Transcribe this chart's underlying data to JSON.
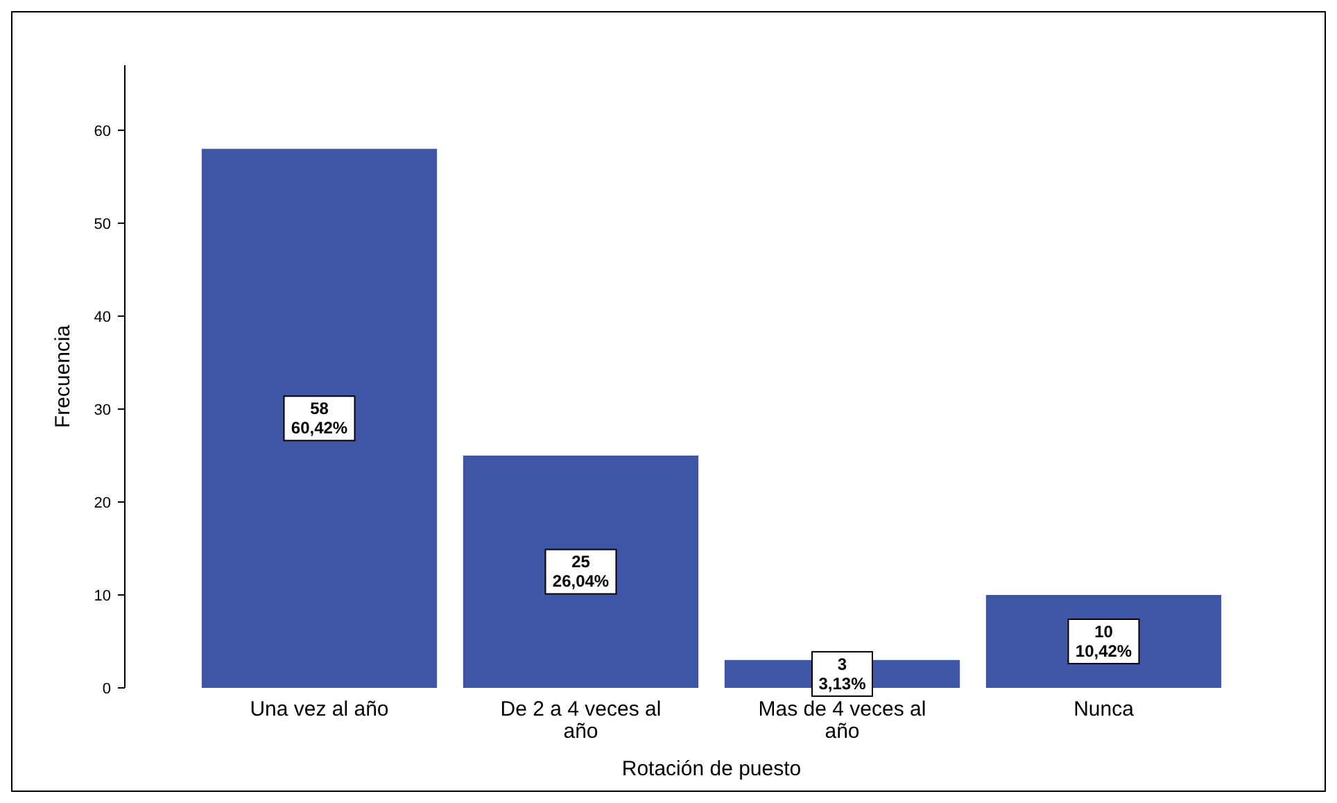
{
  "chart_data": {
    "type": "bar",
    "xlabel": "Rotación de puesto",
    "ylabel": "Frecuencia",
    "categories": [
      "Una vez al año",
      "De 2 a 4 veces al año",
      "Mas de 4 veces al año",
      "Nunca"
    ],
    "values": [
      58,
      25,
      3,
      10
    ],
    "color": "#3f56a6",
    "value_labels": [
      "58\n60,42%",
      "25\n26,04%",
      "3\n3,13%",
      "10\n10,42%"
    ],
    "ylim": [
      0,
      67
    ],
    "yticks": [
      0,
      10,
      20,
      30,
      40,
      50,
      60
    ],
    "grid": false
  }
}
